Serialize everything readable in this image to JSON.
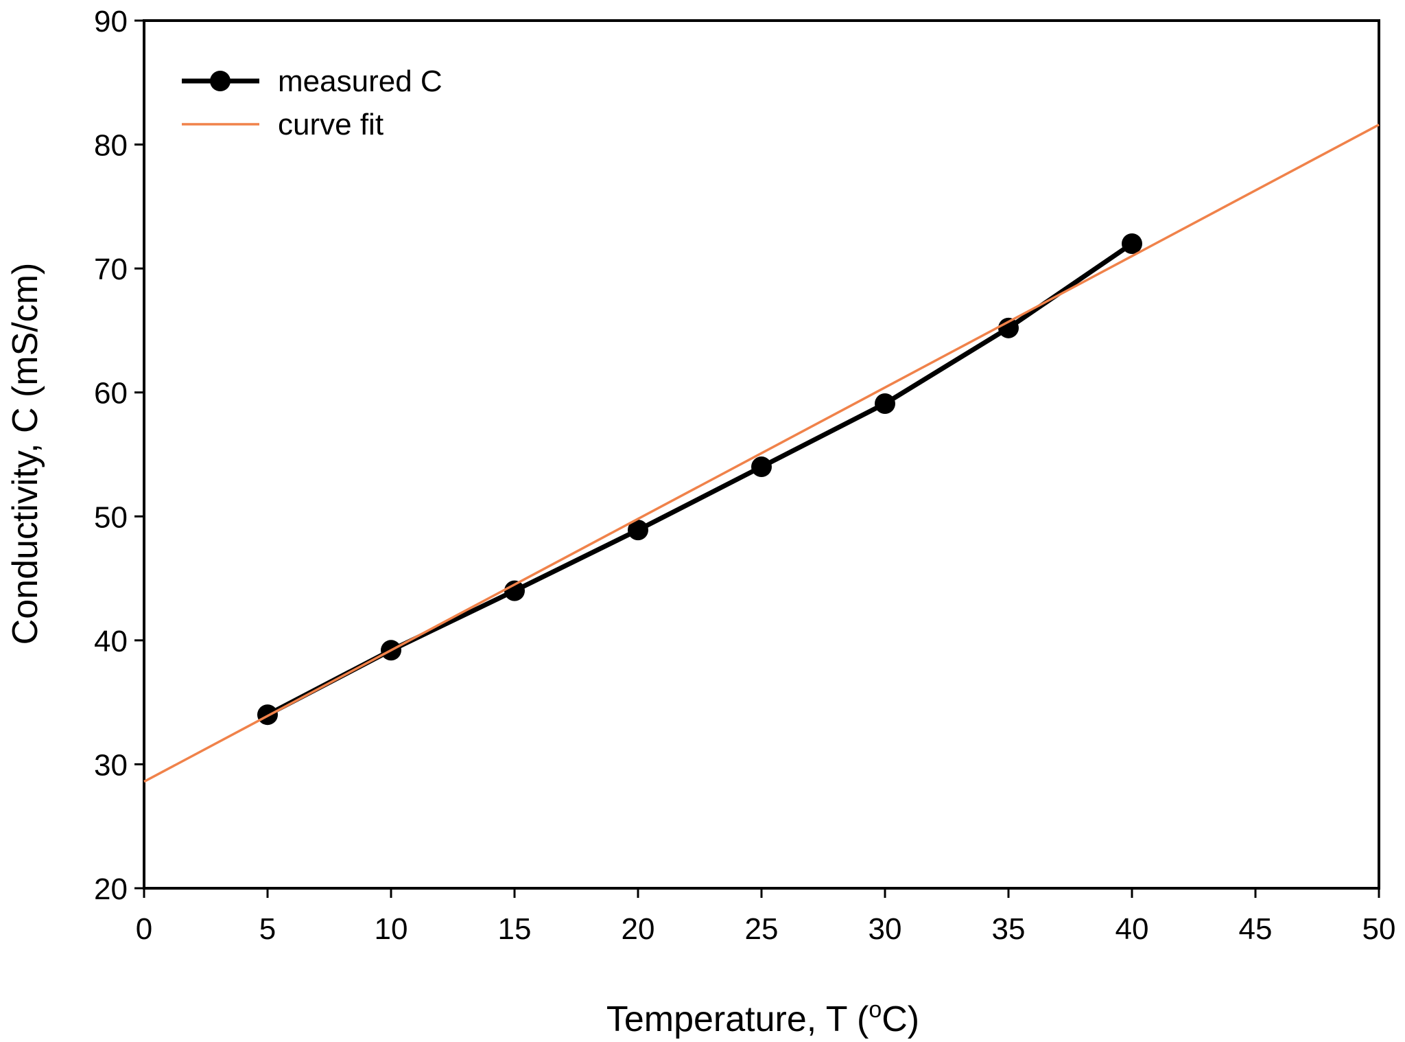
{
  "chart_data": {
    "type": "line",
    "title": "",
    "xlabel": "Temperature, T (",
    "xlabel_super": "o",
    "xlabel_suffix": "C)",
    "ylabel": "Conductivity, C (mS/cm)",
    "xlim": [
      0,
      50
    ],
    "ylim": [
      20,
      90
    ],
    "xticks": [
      0,
      5,
      10,
      15,
      20,
      25,
      30,
      35,
      40,
      45,
      50
    ],
    "yticks": [
      20,
      30,
      40,
      50,
      60,
      70,
      80,
      90
    ],
    "grid": false,
    "legend_position": "top-left",
    "series": [
      {
        "name": "measured C",
        "kind": "line+markers",
        "color": "#000000",
        "x": [
          5,
          10,
          15,
          20,
          25,
          30,
          35,
          40
        ],
        "y": [
          34.0,
          39.2,
          44.0,
          48.9,
          54.0,
          59.1,
          65.2,
          72.0
        ]
      },
      {
        "name": "curve fit",
        "kind": "line",
        "color": "#f0824a",
        "x": [
          0,
          50
        ],
        "y": [
          28.6,
          81.6
        ]
      }
    ]
  }
}
